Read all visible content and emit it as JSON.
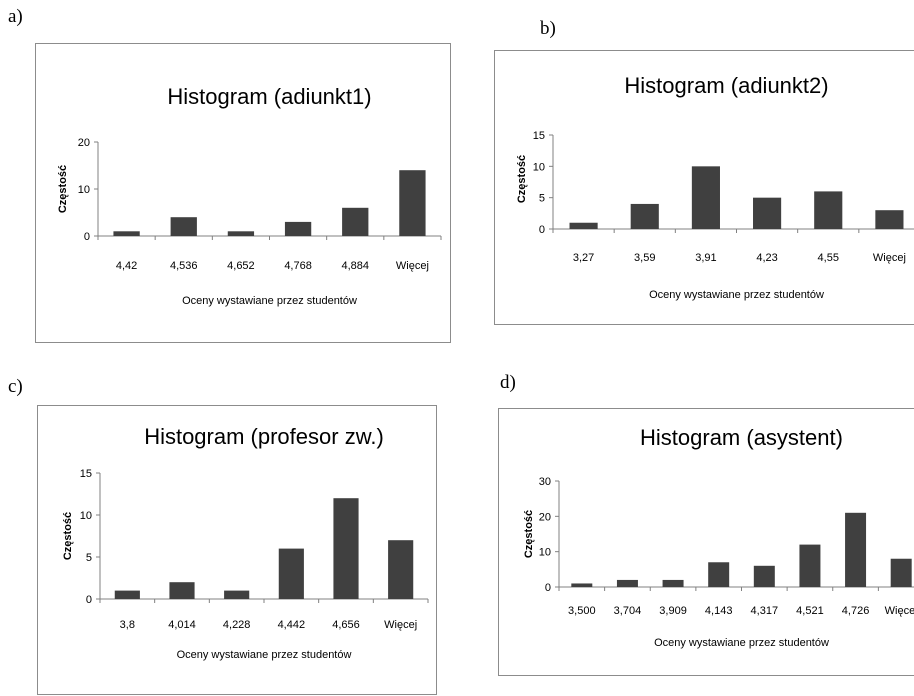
{
  "panel_letters": [
    "a)",
    "b)",
    "c)",
    "d)"
  ],
  "chart_data": [
    {
      "type": "bar",
      "title": "Histogram (adiunkt1)",
      "xlabel": "Oceny wystawiane przez studentów",
      "ylabel": "Częstość",
      "categories": [
        "4,42",
        "4,536",
        "4,652",
        "4,768",
        "4,884",
        "Więcej"
      ],
      "values": [
        1,
        4,
        1,
        3,
        6,
        14
      ],
      "ylim": [
        0,
        20
      ],
      "yticks": [
        0,
        10,
        20
      ],
      "grid": false,
      "color": "#404040"
    },
    {
      "type": "bar",
      "title": "Histogram (adiunkt2)",
      "xlabel": "Oceny wystawiane przez studentów",
      "ylabel": "Częstość",
      "categories": [
        "3,27",
        "3,59",
        "3,91",
        "4,23",
        "4,55",
        "Więcej"
      ],
      "values": [
        1,
        4,
        10,
        5,
        6,
        3
      ],
      "ylim": [
        0,
        15
      ],
      "yticks": [
        0,
        5,
        10,
        15
      ],
      "grid": false,
      "color": "#404040"
    },
    {
      "type": "bar",
      "title": "Histogram (profesor zw.)",
      "xlabel": "Oceny wystawiane przez studentów",
      "ylabel": "Częstość",
      "categories": [
        "3,8",
        "4,014",
        "4,228",
        "4,442",
        "4,656",
        "Więcej"
      ],
      "values": [
        1,
        2,
        1,
        6,
        12,
        7
      ],
      "ylim": [
        0,
        15
      ],
      "yticks": [
        0,
        5,
        10,
        15
      ],
      "grid": false,
      "color": "#404040"
    },
    {
      "type": "bar",
      "title": "Histogram (asystent)",
      "xlabel": "Oceny wystawiane przez studentów",
      "ylabel": "Częstość",
      "categories": [
        "3,500",
        "3,704",
        "3,909",
        "4,143",
        "4,317",
        "4,521",
        "4,726",
        "Więcej"
      ],
      "values": [
        1,
        2,
        2,
        7,
        6,
        12,
        21,
        8
      ],
      "ylim": [
        0,
        30
      ],
      "yticks": [
        0,
        10,
        20,
        30
      ],
      "grid": false,
      "color": "#404040"
    }
  ]
}
